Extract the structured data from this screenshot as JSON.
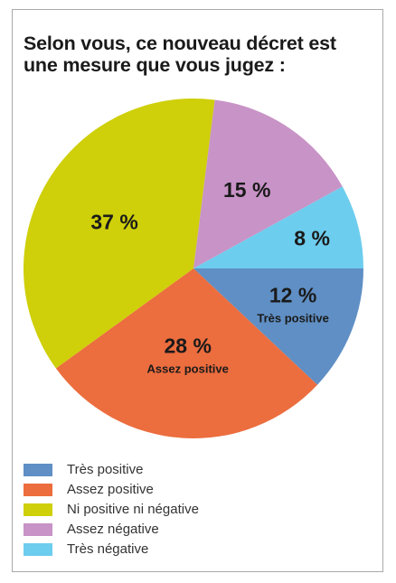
{
  "title_lines": [
    "Selon vous, ce nouveau décret est",
    "une mesure que vous jugez :"
  ],
  "colors": {
    "Très positive": "#5f8fc4",
    "Assez positive": "#ec6d3e",
    "Ni positive ni négative": "#cfcf0a",
    "Assez négative": "#c893c6",
    "Très négative": "#6dcdee"
  },
  "chart_data": {
    "type": "pie",
    "title": "Selon vous, ce nouveau décret est une mesure que vous jugez :",
    "unit": "%",
    "slices": [
      {
        "label": "Très positive",
        "value": 12,
        "value_text": "12 %",
        "inline_label": "Très positive"
      },
      {
        "label": "Assez positive",
        "value": 28,
        "value_text": "28 %",
        "inline_label": "Assez positive"
      },
      {
        "label": "Ni positive ni négative",
        "value": 37,
        "value_text": "37 %",
        "inline_label": ""
      },
      {
        "label": "Assez négative",
        "value": 15,
        "value_text": "15 %",
        "inline_label": ""
      },
      {
        "label": "Très négative",
        "value": 8,
        "value_text": "8 %",
        "inline_label": ""
      }
    ],
    "legend": [
      "Très positive",
      "Assez positive",
      "Ni positive ni négative",
      "Assez négative",
      "Très négative"
    ],
    "legend_position": "bottom-left"
  }
}
